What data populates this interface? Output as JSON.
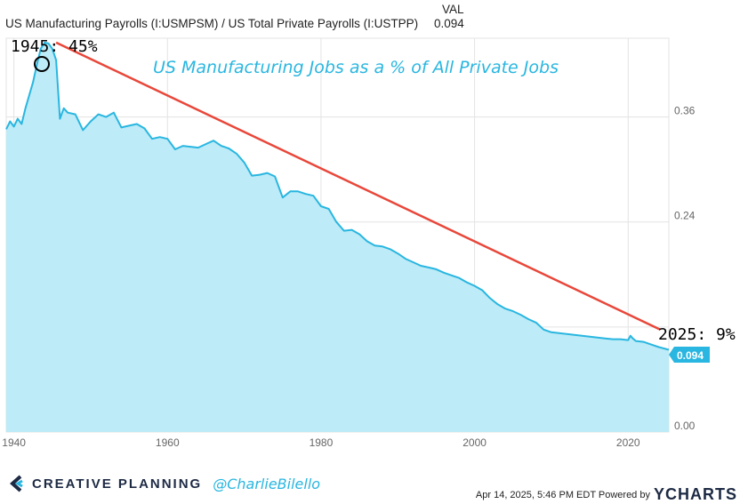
{
  "header": {
    "series_title": "US Manufacturing Payrolls (I:USMPSM) / US Total Private Payrolls (I:USTPP)",
    "val_label": "VAL",
    "val": "0.094"
  },
  "footer": {
    "brand": "CREATIVE PLANNING",
    "handle": "@CharlieBilello",
    "timestamp": "Apr 14, 2025, 5:46 PM EDT Powered by",
    "ycharts": "YCHARTS"
  },
  "chart_data": {
    "type": "area",
    "title": "US Manufacturing Jobs as a % of All Private Jobs",
    "xlabel": "",
    "ylabel": "",
    "xlim": [
      1939,
      2025.3
    ],
    "ylim": [
      0,
      0.45
    ],
    "x_ticks": [
      "1940",
      "1960",
      "1980",
      "2000",
      "2020"
    ],
    "y_ticks": [
      "0.00",
      "0.24",
      "0.36"
    ],
    "grid": true,
    "colors": {
      "line": "#29b6e0",
      "fill": "#bdebf7",
      "trend": "#e8473a",
      "badge": "#29b6e0"
    },
    "annotations": {
      "start": "1945: 45%",
      "end": "2025: 9%",
      "last_value": "0.094"
    },
    "trend_line": {
      "from": [
        1945.5,
        0.445
      ],
      "to": [
        2024.2,
        0.117
      ]
    },
    "series": [
      {
        "x": [
          1939,
          1939.5,
          1940,
          1940.5,
          1941,
          1941.5,
          1942,
          1942.5,
          1943,
          1943.5,
          1944,
          1944.5,
          1945,
          1945.5,
          1946,
          1946.5,
          1947,
          1948,
          1949,
          1950,
          1951,
          1952,
          1953,
          1954,
          1955,
          1956,
          1957,
          1958,
          1959,
          1960,
          1961,
          1962,
          1963,
          1964,
          1965,
          1966,
          1967,
          1968,
          1969,
          1970,
          1971,
          1972,
          1973,
          1974,
          1975,
          1976,
          1977,
          1978,
          1979,
          1980,
          1981,
          1982,
          1983,
          1984,
          1985,
          1986,
          1987,
          1988,
          1989,
          1990,
          1991,
          1992,
          1993,
          1994,
          1995,
          1996,
          1997,
          1998,
          1999,
          2000,
          2001,
          2002,
          2003,
          2004,
          2005,
          2006,
          2007,
          2008,
          2009,
          2010,
          2011,
          2012,
          2013,
          2014,
          2015,
          2016,
          2017,
          2018,
          2019,
          2020,
          2020.3,
          2020.6,
          2021,
          2022,
          2023,
          2024,
          2025.3
        ],
        "y": [
          0.346,
          0.355,
          0.349,
          0.358,
          0.352,
          0.37,
          0.385,
          0.4,
          0.42,
          0.438,
          0.445,
          0.444,
          0.438,
          0.425,
          0.358,
          0.37,
          0.365,
          0.363,
          0.345,
          0.355,
          0.363,
          0.36,
          0.365,
          0.348,
          0.35,
          0.352,
          0.347,
          0.335,
          0.337,
          0.335,
          0.323,
          0.327,
          0.326,
          0.325,
          0.329,
          0.333,
          0.327,
          0.324,
          0.318,
          0.308,
          0.293,
          0.294,
          0.296,
          0.292,
          0.268,
          0.275,
          0.275,
          0.272,
          0.27,
          0.258,
          0.255,
          0.24,
          0.23,
          0.231,
          0.226,
          0.218,
          0.213,
          0.212,
          0.209,
          0.204,
          0.198,
          0.194,
          0.19,
          0.188,
          0.186,
          0.182,
          0.179,
          0.176,
          0.171,
          0.167,
          0.162,
          0.153,
          0.146,
          0.141,
          0.138,
          0.134,
          0.129,
          0.125,
          0.117,
          0.114,
          0.113,
          0.112,
          0.111,
          0.11,
          0.109,
          0.108,
          0.107,
          0.106,
          0.106,
          0.105,
          0.11,
          0.107,
          0.104,
          0.103,
          0.1,
          0.097,
          0.094
        ]
      }
    ]
  }
}
